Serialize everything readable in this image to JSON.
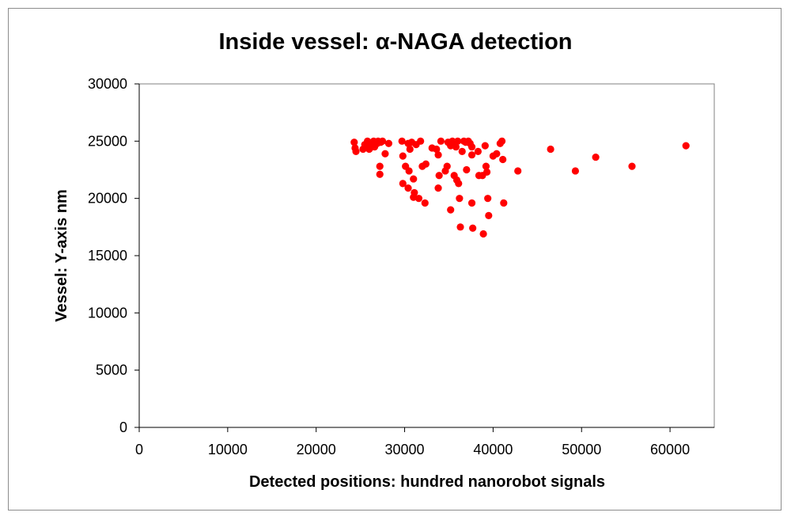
{
  "chart_data": {
    "type": "scatter",
    "title": "Inside vessel: α-NAGA detection",
    "xlabel": "Detected positions: hundred nanorobot signals",
    "ylabel": "Vessel: Y-axis nm",
    "xlim": [
      0,
      65000
    ],
    "ylim": [
      0,
      30000
    ],
    "xticks": [
      0,
      10000,
      20000,
      30000,
      40000,
      50000,
      60000
    ],
    "yticks": [
      0,
      5000,
      10000,
      15000,
      20000,
      25000,
      30000
    ],
    "xtick_labels": [
      "0",
      "10000",
      "20000",
      "30000",
      "40000",
      "50000",
      "60000"
    ],
    "ytick_labels": [
      "0",
      "5000",
      "10000",
      "15000",
      "20000",
      "25000",
      "30000"
    ],
    "grid": false,
    "legend": false,
    "marker_color": "#ff0000",
    "points": [
      [
        24300,
        24900
      ],
      [
        24400,
        24400
      ],
      [
        24500,
        24100
      ],
      [
        25300,
        24300
      ],
      [
        25500,
        24700
      ],
      [
        25800,
        25000
      ],
      [
        25900,
        24400
      ],
      [
        26000,
        24300
      ],
      [
        26200,
        24800
      ],
      [
        26500,
        25000
      ],
      [
        26600,
        24500
      ],
      [
        26900,
        24800
      ],
      [
        27000,
        25000
      ],
      [
        27300,
        24900
      ],
      [
        27500,
        25000
      ],
      [
        27800,
        23900
      ],
      [
        28200,
        24800
      ],
      [
        27200,
        22800
      ],
      [
        27200,
        22100
      ],
      [
        29700,
        25000
      ],
      [
        29800,
        23700
      ],
      [
        30100,
        22800
      ],
      [
        30400,
        24800
      ],
      [
        30600,
        24300
      ],
      [
        30800,
        24900
      ],
      [
        31300,
        24700
      ],
      [
        31800,
        25000
      ],
      [
        30500,
        22400
      ],
      [
        29800,
        21300
      ],
      [
        30400,
        20900
      ],
      [
        31000,
        21700
      ],
      [
        31000,
        20100
      ],
      [
        31100,
        20500
      ],
      [
        31600,
        20000
      ],
      [
        32000,
        22800
      ],
      [
        32400,
        23000
      ],
      [
        32300,
        19600
      ],
      [
        33100,
        24400
      ],
      [
        33600,
        24300
      ],
      [
        33800,
        23800
      ],
      [
        33900,
        22000
      ],
      [
        33800,
        20900
      ],
      [
        34100,
        25000
      ],
      [
        34600,
        22400
      ],
      [
        34800,
        22800
      ],
      [
        34900,
        24900
      ],
      [
        35200,
        24600
      ],
      [
        35200,
        19000
      ],
      [
        35400,
        25000
      ],
      [
        35600,
        22000
      ],
      [
        35800,
        24500
      ],
      [
        35900,
        21600
      ],
      [
        36000,
        25000
      ],
      [
        36100,
        21300
      ],
      [
        36200,
        20000
      ],
      [
        36300,
        17500
      ],
      [
        36500,
        24100
      ],
      [
        36700,
        25000
      ],
      [
        36900,
        24900
      ],
      [
        37000,
        22500
      ],
      [
        37200,
        25000
      ],
      [
        37400,
        24800
      ],
      [
        37600,
        24500
      ],
      [
        37600,
        23800
      ],
      [
        37600,
        19600
      ],
      [
        37700,
        17400
      ],
      [
        38300,
        24100
      ],
      [
        38400,
        22000
      ],
      [
        38800,
        22000
      ],
      [
        38900,
        16900
      ],
      [
        39100,
        24600
      ],
      [
        39200,
        22800
      ],
      [
        39300,
        22300
      ],
      [
        39400,
        20000
      ],
      [
        39500,
        18500
      ],
      [
        40000,
        23700
      ],
      [
        40400,
        23900
      ],
      [
        40800,
        24800
      ],
      [
        41000,
        25000
      ],
      [
        41100,
        23400
      ],
      [
        41200,
        19600
      ],
      [
        42800,
        22400
      ],
      [
        46500,
        24300
      ],
      [
        49300,
        22400
      ],
      [
        51600,
        23600
      ],
      [
        55700,
        22800
      ],
      [
        61800,
        24600
      ]
    ]
  }
}
